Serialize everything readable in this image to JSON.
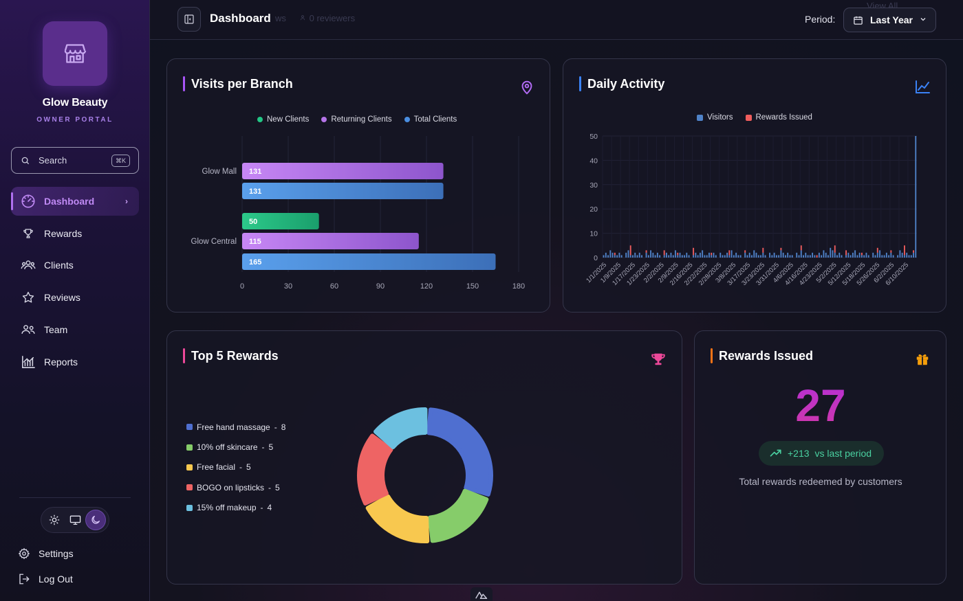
{
  "brand": {
    "name": "Glow Beauty",
    "subtitle": "OWNER PORTAL"
  },
  "search": {
    "placeholder": "Search",
    "shortcut": "⌘K"
  },
  "nav": {
    "items": [
      {
        "label": "Dashboard",
        "icon": "gauge-icon",
        "active": true
      },
      {
        "label": "Rewards",
        "icon": "trophy-icon"
      },
      {
        "label": "Clients",
        "icon": "users-icon"
      },
      {
        "label": "Reviews",
        "icon": "star-icon"
      },
      {
        "label": "Team",
        "icon": "team-icon"
      },
      {
        "label": "Reports",
        "icon": "reports-icon"
      }
    ],
    "settings": "Settings",
    "logout": "Log Out"
  },
  "theme": {
    "options": [
      "light",
      "system",
      "dark"
    ],
    "selected": "dark"
  },
  "topbar": {
    "title": "Dashboard",
    "ghost_text": [
      "ws",
      "0 reviewers",
      "View All"
    ],
    "period_label": "Period:",
    "period_value": "Last Year"
  },
  "cards": {
    "visits": {
      "title": "Visits per Branch",
      "accent": "#a855f7"
    },
    "daily": {
      "title": "Daily Activity",
      "accent": "#3b82f6"
    },
    "top5": {
      "title": "Top 5 Rewards",
      "accent": "#ec4899"
    },
    "issued": {
      "title": "Rewards Issued",
      "accent": "#f97316",
      "value": "27",
      "delta": "+213",
      "delta_label": "vs last period",
      "caption": "Total rewards redeemed by customers"
    }
  },
  "chart_data": [
    {
      "type": "bar",
      "orientation": "horizontal",
      "title": "Visits per Branch",
      "categories": [
        "Glow Mall",
        "Glow Central"
      ],
      "series": [
        {
          "name": "New Clients",
          "color": "#22c585",
          "values": [
            null,
            50
          ]
        },
        {
          "name": "Returning Clients",
          "color": "#b574e8",
          "values": [
            131,
            115
          ]
        },
        {
          "name": "Total Clients",
          "color": "#4a8ee0",
          "values": [
            131,
            165
          ]
        }
      ],
      "xlim": [
        0,
        180
      ],
      "xticks": [
        "0",
        "30",
        "60",
        "90",
        "120",
        "150",
        "180"
      ],
      "legend": "top"
    },
    {
      "type": "bar",
      "title": "Daily Activity",
      "series": [
        {
          "name": "Visitors",
          "color": "#4f82c8"
        },
        {
          "name": "Rewards Issued",
          "color": "#ef5d5d"
        }
      ],
      "x_tick_labels": [
        "1/1/2025",
        "1/9/2025",
        "1/17/2025",
        "1/23/2025",
        "2/2/2025",
        "2/9/2025",
        "2/16/2025",
        "2/22/2025",
        "2/28/2025",
        "3/8/2025",
        "3/17/2025",
        "3/23/2025",
        "3/31/2025",
        "4/6/2025",
        "4/16/2025",
        "4/23/2025",
        "5/2/2025",
        "5/12/2025",
        "5/18/2025",
        "5/26/2025",
        "6/2/2025",
        "6/10/2025"
      ],
      "visitors": [
        1,
        2,
        1,
        3,
        2,
        1,
        1,
        2,
        1,
        0,
        2,
        3,
        1,
        1,
        2,
        1,
        2,
        1,
        0,
        2,
        1,
        3,
        2,
        1,
        2,
        1,
        0,
        1,
        2,
        1,
        2,
        1,
        3,
        1,
        2,
        1,
        1,
        2,
        1,
        0,
        1,
        2,
        1,
        2,
        3,
        1,
        1,
        2,
        1,
        2,
        1,
        0,
        2,
        1,
        1,
        2,
        1,
        3,
        1,
        2,
        1,
        1,
        0,
        2,
        1,
        2,
        1,
        3,
        2,
        1,
        1,
        2,
        1,
        0,
        2,
        1,
        2,
        1,
        1,
        3,
        2,
        1,
        2,
        1,
        1,
        0,
        2,
        1,
        3,
        1,
        2,
        1,
        1,
        2,
        1,
        0,
        2,
        1,
        3,
        2,
        1,
        4,
        3,
        2,
        1,
        2,
        1,
        0,
        1,
        2,
        1,
        2,
        3,
        1,
        2,
        1,
        1,
        2,
        1,
        0,
        2,
        1,
        2,
        3,
        1,
        1,
        2,
        1,
        2,
        1,
        0,
        1,
        3,
        2,
        1,
        2,
        1,
        1,
        2,
        50
      ],
      "rewards": {
        "5": 1,
        "12": 4,
        "19": 1,
        "27": 2,
        "33": 1,
        "40": 3,
        "48": 1,
        "56": 2,
        "63": 1,
        "71": 2,
        "79": 1,
        "88": 2,
        "95": 1,
        "103": 3,
        "108": 2,
        "115": 1,
        "122": 2,
        "128": 1,
        "134": 4,
        "138": 1
      },
      "ylim": [
        0,
        50
      ],
      "yticks": [
        "0",
        "10",
        "20",
        "30",
        "40",
        "50"
      ],
      "legend": "top"
    },
    {
      "type": "pie",
      "variant": "donut",
      "title": "Top 5 Rewards",
      "slices": [
        {
          "label": "Free hand massage",
          "value": 8,
          "color": "#4f6fd0"
        },
        {
          "label": "10% off skincare",
          "value": 5,
          "color": "#86cc6a"
        },
        {
          "label": "Free facial",
          "value": 5,
          "color": "#f8c84f"
        },
        {
          "label": "BOGO on lipsticks",
          "value": 5,
          "color": "#ee6464"
        },
        {
          "label": "15% off makeup",
          "value": 4,
          "color": "#6cc0e0"
        }
      ]
    }
  ]
}
